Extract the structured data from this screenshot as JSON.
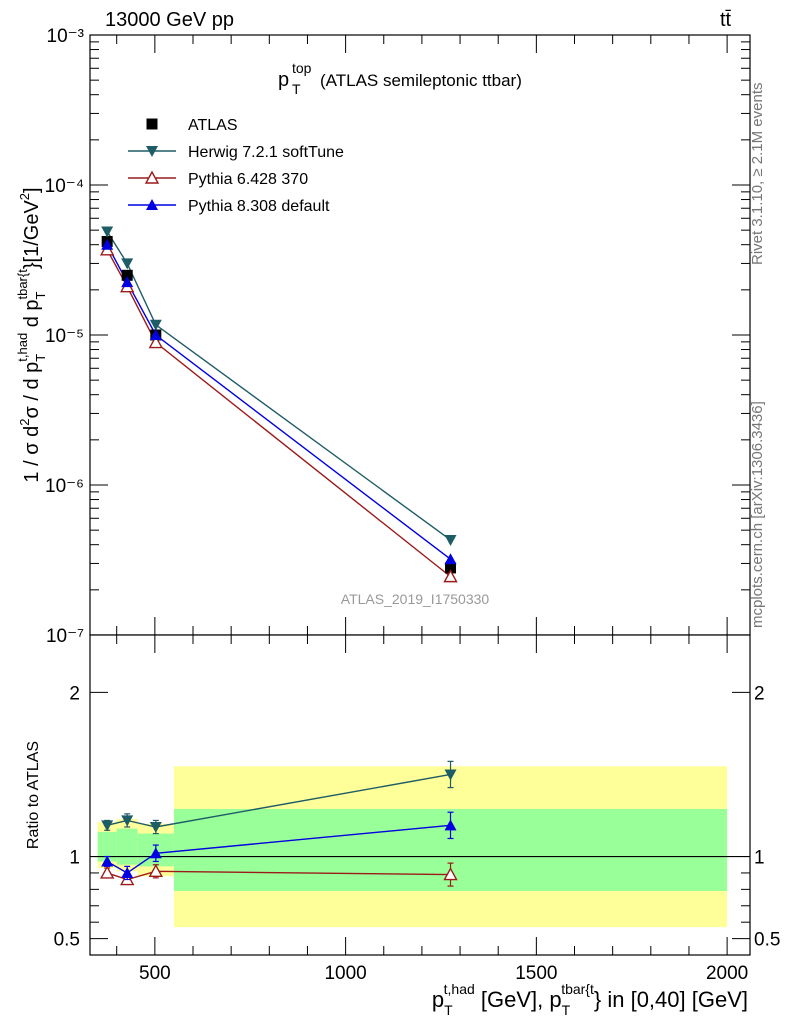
{
  "header": {
    "left": "13000 GeV pp",
    "right": "tt̄"
  },
  "side_labels": {
    "rivet": "Rivet 3.1.10, ≥ 2.1M events",
    "mcplots": "mcplots.cern.ch [arXiv:1306.3436]"
  },
  "chart_data": [
    {
      "type": "line",
      "panel": "main",
      "title_main": "p",
      "title_sup": "top",
      "title_sub": "T",
      "title_rest": "(ATLAS semileptonic ttbar)",
      "ylabel": "1 / σ d²σ / d p_T^{t,had} d p_T^{tbar{t}} [1/GeV²]",
      "yscale": "log",
      "ylim": [
        1e-07,
        0.001
      ],
      "xlim": [
        330,
        2060
      ],
      "ytick_labels": [
        "10⁻⁷",
        "10⁻⁶",
        "10⁻⁵",
        "10⁻⁴",
        "10⁻³"
      ],
      "watermark": "ATLAS_2019_I1750330",
      "legend_position": "top-left",
      "series": [
        {
          "name": "ATLAS",
          "color": "#000000",
          "marker": "square",
          "line": false,
          "x": [
            375,
            427.5,
            502.5,
            1275
          ],
          "y": [
            4.2e-05,
            2.5e-05,
            1e-05,
            2.8e-07
          ]
        },
        {
          "name": "Herwig 7.2.1 softTune",
          "color": "#1e5c66",
          "marker": "triangle-down",
          "x": [
            375,
            427.5,
            502.5,
            1275
          ],
          "y": [
            4.9e-05,
            3e-05,
            1.17e-05,
            4.3e-07
          ]
        },
        {
          "name": "Pythia 6.428 370",
          "color": "#9b1b1b",
          "marker": "triangle-up-open",
          "x": [
            375,
            427.5,
            502.5,
            1275
          ],
          "y": [
            3.7e-05,
            2.1e-05,
            8.9e-06,
            2.45e-07
          ]
        },
        {
          "name": "Pythia 8.308 default",
          "color": "#0000e0",
          "marker": "triangle-up",
          "x": [
            375,
            427.5,
            502.5,
            1275
          ],
          "y": [
            4e-05,
            2.25e-05,
            1e-05,
            3.2e-07
          ]
        }
      ]
    },
    {
      "type": "line",
      "panel": "ratio",
      "ylabel": "Ratio to ATLAS",
      "ylim": [
        0.4,
        2.35
      ],
      "xlim": [
        330,
        2060
      ],
      "ytick_labels": [
        "0.5",
        "1",
        "2"
      ],
      "xtick_labels": [
        "500",
        "1000",
        "1500",
        "2000"
      ],
      "xlabel_parts": [
        "p",
        "T",
        "t,had",
        " [GeV], p",
        "T",
        "tbar{t",
        "} in [0,40] [GeV]"
      ],
      "bands": [
        {
          "x0": 350,
          "x1": 400,
          "yellow": [
            0.93,
            1.21
          ],
          "green": [
            0.97,
            1.15
          ]
        },
        {
          "x0": 400,
          "x1": 455,
          "yellow": [
            0.91,
            1.23
          ],
          "green": [
            0.95,
            1.17
          ]
        },
        {
          "x0": 455,
          "x1": 550,
          "yellow": [
            0.88,
            1.2
          ],
          "green": [
            0.94,
            1.14
          ]
        },
        {
          "x0": 550,
          "x1": 2000,
          "yellow": [
            0.57,
            1.55
          ],
          "green": [
            0.79,
            1.29
          ]
        }
      ],
      "series": [
        {
          "name": "Herwig 7.2.1 softTune",
          "color": "#1e5c66",
          "marker": "triangle-down",
          "x": [
            375,
            427.5,
            502.5,
            1275
          ],
          "y": [
            1.19,
            1.22,
            1.18,
            1.5
          ],
          "err": [
            0.03,
            0.04,
            0.04,
            0.08
          ]
        },
        {
          "name": "Pythia 6.428 370",
          "color": "#9b1b1b",
          "marker": "triangle-up-open",
          "x": [
            375,
            427.5,
            502.5,
            1275
          ],
          "y": [
            0.9,
            0.86,
            0.91,
            0.89
          ],
          "err": [
            0.03,
            0.03,
            0.04,
            0.07
          ]
        },
        {
          "name": "Pythia 8.308 default",
          "color": "#0000e0",
          "marker": "triangle-up",
          "x": [
            375,
            427.5,
            502.5,
            1275
          ],
          "y": [
            0.97,
            0.9,
            1.02,
            1.19
          ],
          "err": [
            0.03,
            0.04,
            0.05,
            0.08
          ]
        }
      ]
    }
  ]
}
